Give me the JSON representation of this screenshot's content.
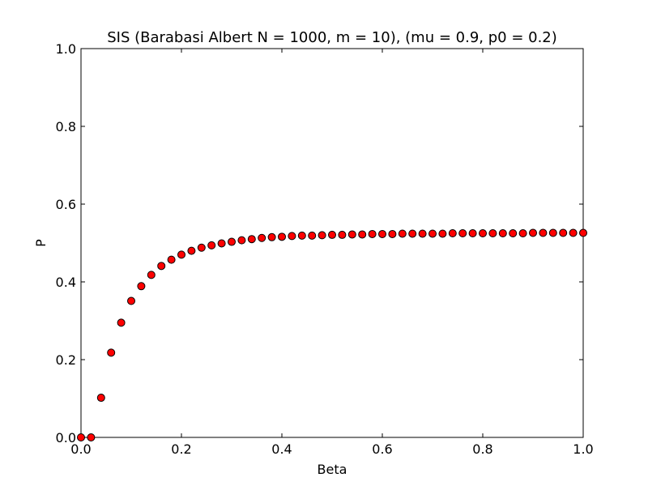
{
  "chart_data": {
    "type": "scatter",
    "title": "SIS (Barabasi Albert N = 1000, m = 10), (mu = 0.9, p0 = 0.2)",
    "xlabel": "Beta",
    "ylabel": "P",
    "xlim": [
      0.0,
      1.0
    ],
    "ylim": [
      0.0,
      1.0
    ],
    "grid": false,
    "legend": "none",
    "x_ticks": [
      0.0,
      0.2,
      0.4,
      0.6,
      0.8,
      1.0
    ],
    "y_ticks": [
      0.0,
      0.2,
      0.4,
      0.6,
      0.8,
      1.0
    ],
    "x_tick_labels": [
      "0.0",
      "0.2",
      "0.4",
      "0.6",
      "0.8",
      "1.0"
    ],
    "y_tick_labels": [
      "0.0",
      "0.2",
      "0.4",
      "0.6",
      "0.8",
      "1.0"
    ],
    "marker": "circle",
    "marker_color": "#ff0000",
    "marker_edge_color": "#000000",
    "series": [
      {
        "x": [
          0.0,
          0.02,
          0.04,
          0.06,
          0.08,
          0.1,
          0.12,
          0.14,
          0.16,
          0.18,
          0.2,
          0.22,
          0.24,
          0.26,
          0.28,
          0.3,
          0.32,
          0.34,
          0.36,
          0.38,
          0.4,
          0.42,
          0.44,
          0.46,
          0.48,
          0.5,
          0.52,
          0.54,
          0.56,
          0.58,
          0.6,
          0.62,
          0.64,
          0.66,
          0.68,
          0.7,
          0.72,
          0.74,
          0.76,
          0.78,
          0.8,
          0.82,
          0.84,
          0.86,
          0.88,
          0.9,
          0.92,
          0.94,
          0.96,
          0.98,
          1.0
        ],
        "y": [
          0.0,
          0.0,
          0.102,
          0.218,
          0.295,
          0.351,
          0.389,
          0.418,
          0.441,
          0.457,
          0.47,
          0.48,
          0.488,
          0.494,
          0.499,
          0.503,
          0.507,
          0.51,
          0.513,
          0.515,
          0.516,
          0.518,
          0.519,
          0.519,
          0.52,
          0.521,
          0.521,
          0.522,
          0.522,
          0.523,
          0.523,
          0.523,
          0.524,
          0.524,
          0.524,
          0.524,
          0.524,
          0.525,
          0.525,
          0.525,
          0.525,
          0.525,
          0.525,
          0.525,
          0.525,
          0.526,
          0.526,
          0.526,
          0.526,
          0.526,
          0.526
        ]
      }
    ]
  }
}
